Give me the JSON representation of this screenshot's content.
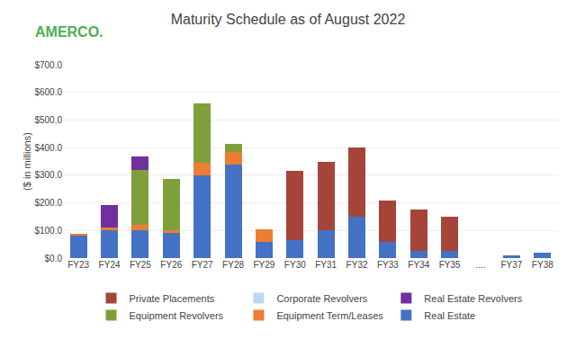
{
  "chart_data": {
    "type": "bar",
    "stacked": true,
    "title": "Maturity Schedule as of August 2022",
    "ylabel": "($ in millions)",
    "annotations": [
      {
        "text": "AMERCO.",
        "color": "#4CAF50"
      }
    ],
    "categories": [
      "FY23",
      "FY24",
      "FY25",
      "FY26",
      "FY27",
      "FY28",
      "FY29",
      "FY30",
      "FY31",
      "FY32",
      "FY33",
      "FY34",
      "FY35",
      "....",
      "FY37",
      "FY38"
    ],
    "series": [
      {
        "name": "Real Estate",
        "color": "#4472C4",
        "values": [
          80,
          100,
          100,
          90,
          300,
          340,
          60,
          65,
          100,
          150,
          60,
          25,
          25,
          0,
          10,
          20
        ]
      },
      {
        "name": "Equipment Term/Leases",
        "color": "#ED7D31",
        "values": [
          8,
          12,
          20,
          12,
          45,
          45,
          45,
          0,
          0,
          0,
          0,
          0,
          0,
          0,
          0,
          0
        ]
      },
      {
        "name": "Equipment Revolvers",
        "color": "#7F9F3A",
        "values": [
          0,
          0,
          200,
          185,
          215,
          30,
          0,
          0,
          0,
          0,
          0,
          0,
          0,
          0,
          0,
          0
        ]
      },
      {
        "name": "Real Estate Revolvers",
        "color": "#7030A0",
        "values": [
          0,
          80,
          48,
          0,
          0,
          0,
          0,
          0,
          0,
          0,
          0,
          0,
          0,
          0,
          0,
          0
        ]
      },
      {
        "name": "Corporate Revolvers",
        "color": "#BDD7EE",
        "values": [
          0,
          0,
          0,
          0,
          0,
          0,
          0,
          0,
          0,
          0,
          0,
          0,
          0,
          0,
          0,
          0
        ]
      },
      {
        "name": "Private Placements",
        "color": "#A5453A",
        "values": [
          0,
          0,
          0,
          0,
          0,
          0,
          0,
          250,
          250,
          250,
          150,
          150,
          125,
          0,
          0,
          0
        ]
      }
    ],
    "ylim": [
      0,
      700
    ],
    "yticks": [
      {
        "value": 0,
        "label": "$0.0"
      },
      {
        "value": 100,
        "label": "$100.0"
      },
      {
        "value": 200,
        "label": "$200.0"
      },
      {
        "value": 300,
        "label": "$300.0"
      },
      {
        "value": 400,
        "label": "$400.0"
      },
      {
        "value": 500,
        "label": "$500.0"
      },
      {
        "value": 600,
        "label": "$600.0"
      },
      {
        "value": 700,
        "label": "$700.0"
      }
    ],
    "grid": true,
    "legend": "bottom"
  }
}
